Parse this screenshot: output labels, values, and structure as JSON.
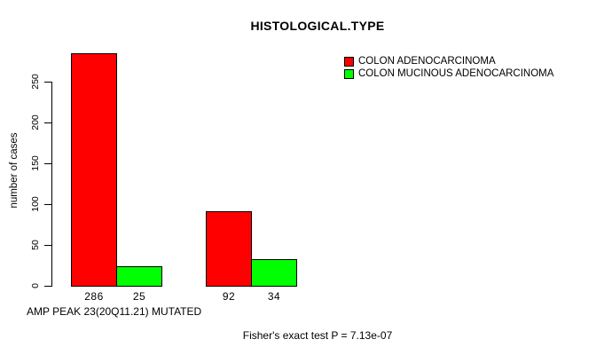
{
  "chart_data": {
    "type": "bar",
    "title": "HISTOLOGICAL.TYPE",
    "ylabel": "number of cases",
    "xlabel": "AMP PEAK 23(20Q11.21) MUTATED",
    "footer": "Fisher's exact test P = 7.13e-07",
    "ylim": [
      0,
      250
    ],
    "yticks": [
      0,
      50,
      100,
      150,
      200,
      250
    ],
    "grid": false,
    "legend_position": "top-right",
    "show_value_labels": true,
    "categories": [
      "",
      ""
    ],
    "series": [
      {
        "name": "COLON ADENOCARCINOMA",
        "color": "#ff0000",
        "values": [
          286,
          92
        ]
      },
      {
        "name": "COLON MUCINOUS ADENOCARCINOMA",
        "color": "#00ff00",
        "values": [
          25,
          34
        ]
      }
    ]
  },
  "colors": {
    "background": "#ffffff",
    "axis": "#000000",
    "text": "#000000",
    "series_red": "#ff0000",
    "series_green": "#00ff00"
  }
}
